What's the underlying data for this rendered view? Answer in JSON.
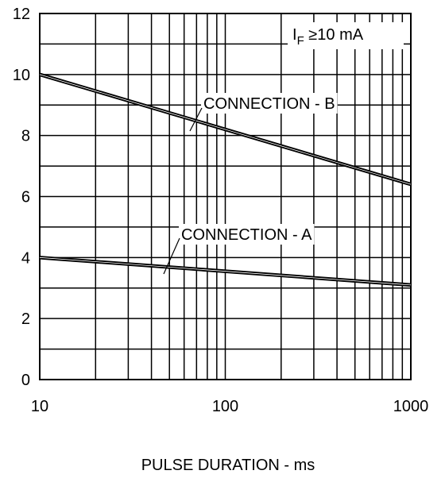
{
  "chart_data": {
    "type": "line",
    "x_scale": "log",
    "xlim": [
      10,
      1000
    ],
    "ylim": [
      0,
      12
    ],
    "xlabel": "PULSE DURATION - ms",
    "ylabel": "",
    "x_ticks": [
      "10",
      "100",
      "1000"
    ],
    "y_ticks": [
      "0",
      "2",
      "4",
      "6",
      "8",
      "10",
      "12"
    ],
    "grid": true,
    "condition_label": {
      "main": "I",
      "sub": "F",
      "rest": " ≥10 mA"
    },
    "series": [
      {
        "name": "CONNECTION - B",
        "x": [
          10,
          1000
        ],
        "y": [
          10.0,
          6.4
        ]
      },
      {
        "name": "CONNECTION - A",
        "x": [
          10,
          1000
        ],
        "y": [
          4.0,
          3.1
        ]
      }
    ],
    "line_color": "#000000"
  }
}
